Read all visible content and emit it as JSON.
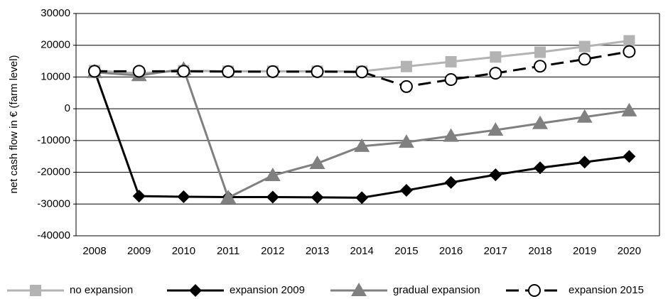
{
  "chart_data": {
    "type": "line",
    "y_label": "net cash flow in € (farm level)",
    "categories": [
      "2008",
      "2009",
      "2010",
      "2011",
      "2012",
      "2013",
      "2014",
      "2015",
      "2016",
      "2017",
      "2018",
      "2019",
      "2020"
    ],
    "ylim": [
      -40000,
      30000
    ],
    "yticks": [
      -40000,
      -30000,
      -20000,
      -10000,
      0,
      10000,
      20000,
      30000
    ],
    "grid": true,
    "legend": "bottom",
    "series": [
      {
        "name": "no expansion",
        "color": "#b3b3b3",
        "marker": "square",
        "dashed": false,
        "values": [
          12000,
          11200,
          12000,
          11800,
          11800,
          11800,
          11800,
          13300,
          14800,
          16300,
          17800,
          19600,
          21400
        ]
      },
      {
        "name": "expansion 2009",
        "color": "#000000",
        "marker": "diamond",
        "dashed": false,
        "values": [
          12000,
          -27500,
          -27700,
          -27800,
          -27800,
          -27900,
          -28000,
          -25700,
          -23200,
          -20800,
          -18600,
          -16800,
          -15000
        ]
      },
      {
        "name": "gradual expansion",
        "color": "#808080",
        "marker": "triangle",
        "dashed": false,
        "values": [
          11500,
          10500,
          12500,
          -28000,
          -21000,
          -17200,
          -11800,
          -10500,
          -8600,
          -6700,
          -4600,
          -2600,
          -600
        ]
      },
      {
        "name": "expansion 2015",
        "color": "#000000",
        "marker": "circle",
        "dashed": true,
        "values": [
          11800,
          11800,
          11800,
          11700,
          11700,
          11700,
          11600,
          7000,
          9200,
          11200,
          13400,
          15600,
          18000
        ]
      }
    ]
  }
}
